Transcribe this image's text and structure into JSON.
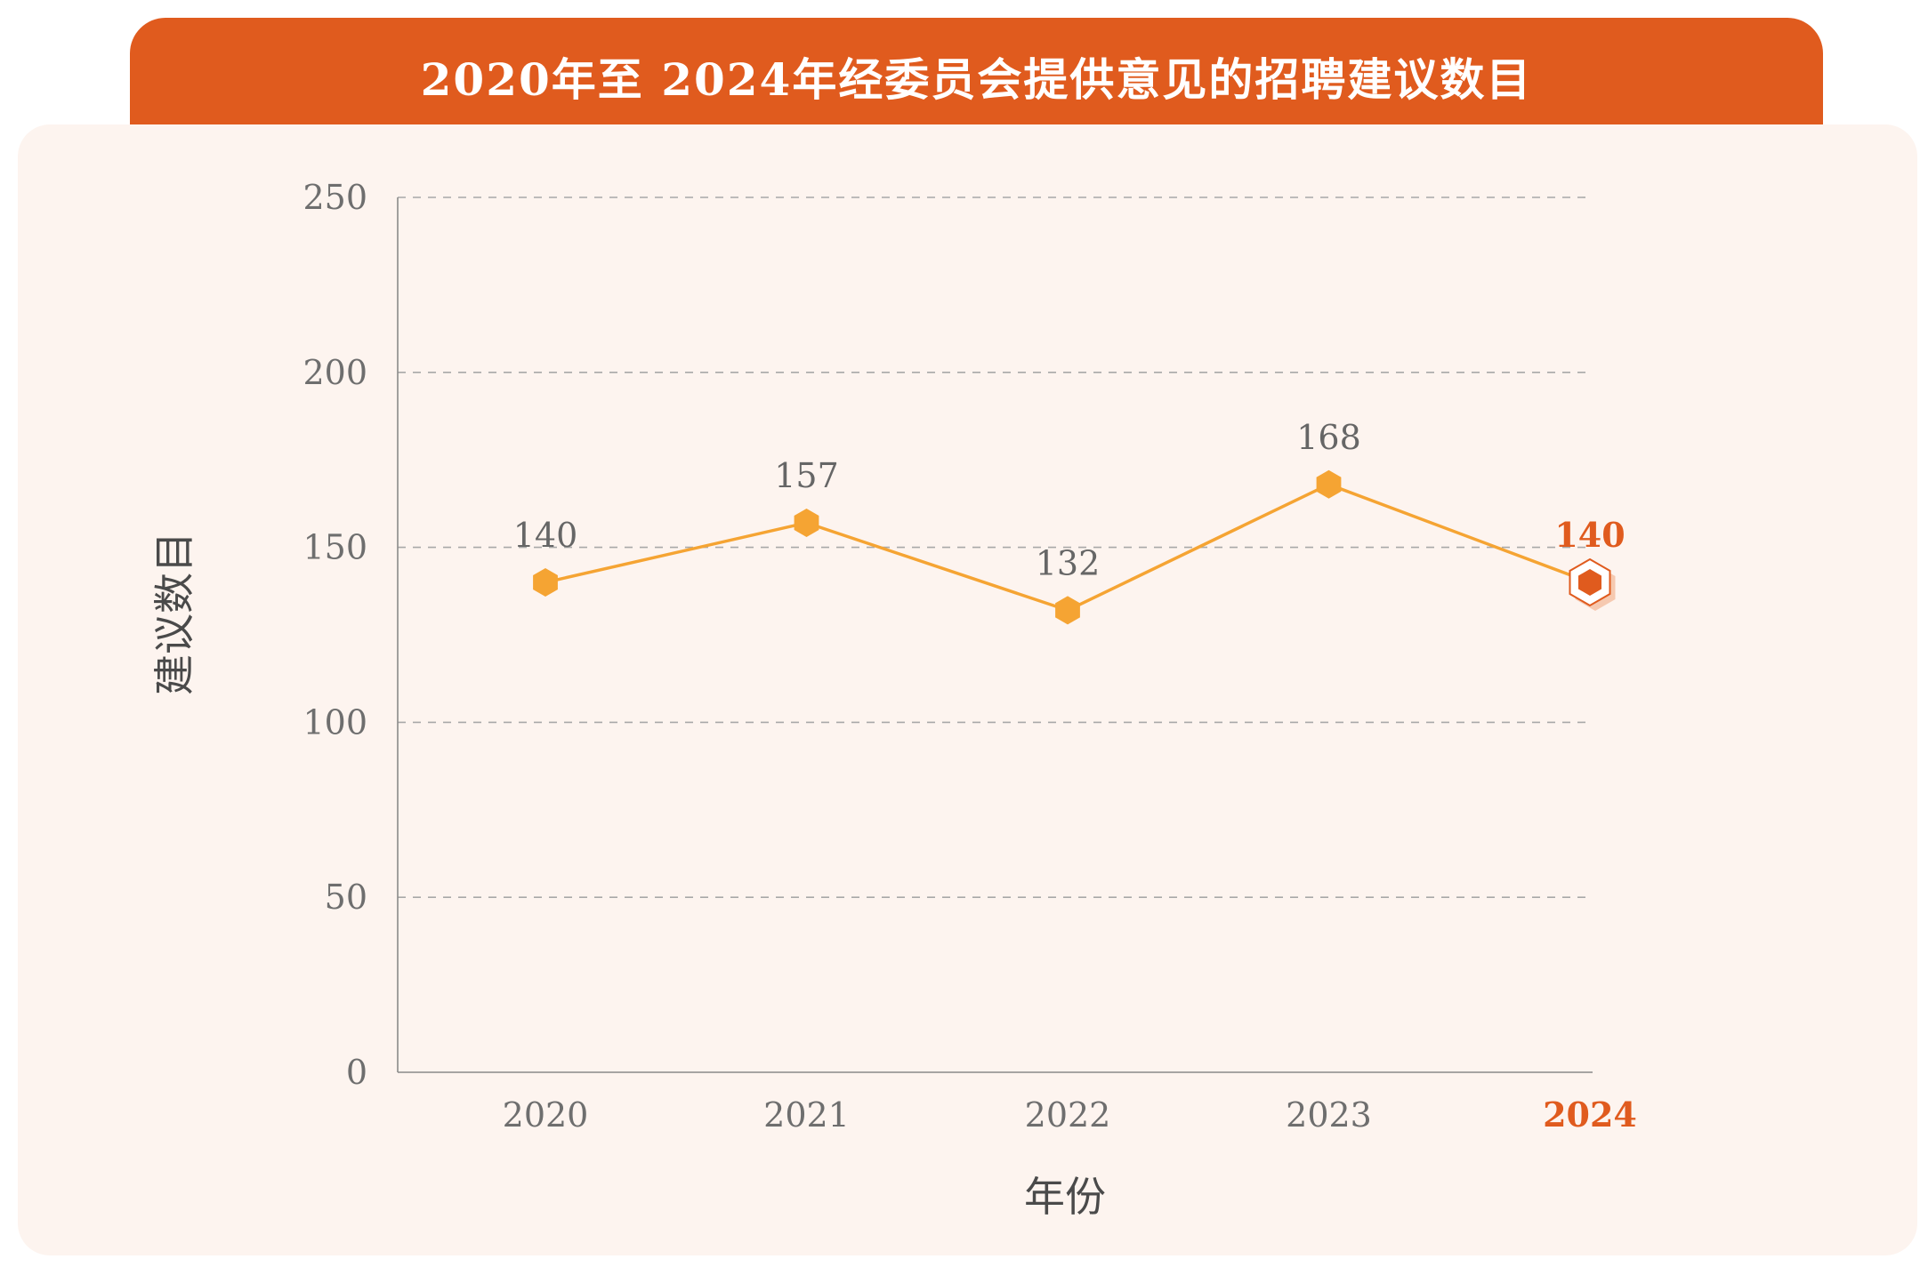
{
  "title": "2020年至 2024年经委员会提供意见的招聘建议数目",
  "colors": {
    "header": "#e05b1e",
    "panel": "#fdf4ef",
    "line": "#f5a433",
    "highlight": "#e05b1e"
  },
  "chart_data": {
    "type": "line",
    "title": "2020年至 2024年经委员会提供意见的招聘建议数目",
    "xlabel": "年份",
    "ylabel": "建议数目",
    "categories": [
      "2020",
      "2021",
      "2022",
      "2023",
      "2024"
    ],
    "values": [
      140,
      157,
      132,
      168,
      140
    ],
    "data_labels": [
      "140",
      "157",
      "132",
      "168",
      "140"
    ],
    "highlight_index": 4,
    "ylim": [
      0,
      250
    ],
    "yticks": [
      0,
      50,
      100,
      150,
      200,
      250
    ],
    "ytick_labels": [
      "0",
      "50",
      "100",
      "150",
      "200",
      "250"
    ],
    "grid": "horizontal-dashed",
    "legend": "none"
  }
}
